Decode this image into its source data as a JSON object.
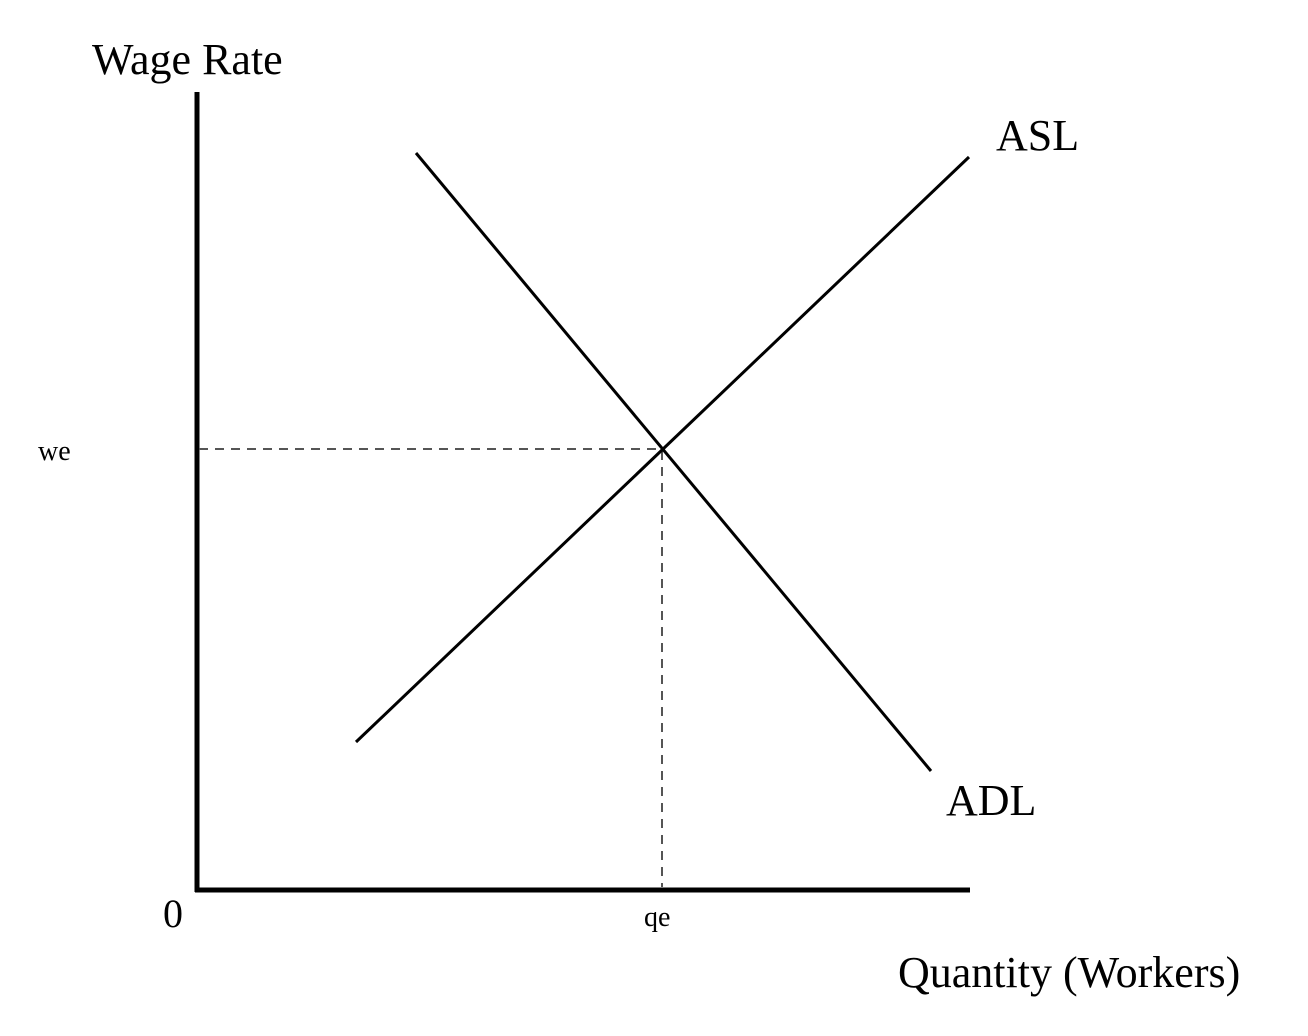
{
  "diagram": {
    "y_axis_label": "Wage Rate",
    "x_axis_label": "Quantity (Workers)",
    "origin_label": "0",
    "supply_curve_label": "ASL",
    "demand_curve_label": "ADL",
    "equilibrium_wage_label": "we",
    "equilibrium_quantity_label": "qe",
    "colors": {
      "line": "#000000",
      "guide": "#555555",
      "background": "#ffffff"
    }
  }
}
